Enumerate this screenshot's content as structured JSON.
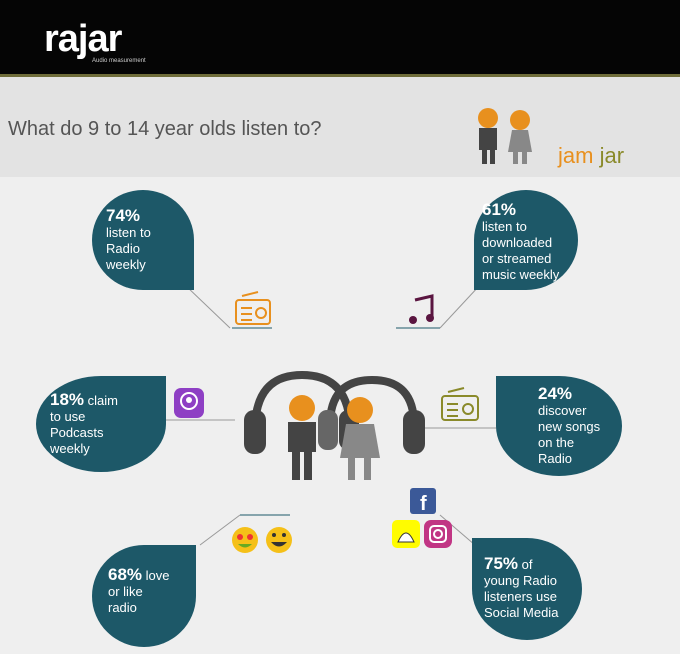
{
  "header": {
    "logo": "rajar",
    "logo_tagline": "Audio measurement"
  },
  "title": "What do 9 to 14 year olds listen to?",
  "brand": {
    "part1": "jam",
    "part2": "jar"
  },
  "bubbles": [
    {
      "stat": "74%",
      "lines": [
        "listen to",
        "Radio",
        "weekly"
      ]
    },
    {
      "stat": "61%",
      "lines": [
        "listen to",
        "downloaded",
        "or streamed",
        "music weekly"
      ]
    },
    {
      "stat": "18%",
      "stat_suffix": "claim",
      "lines": [
        "to use",
        "Podcasts",
        "weekly"
      ]
    },
    {
      "stat": "24%",
      "lines": [
        "discover",
        "new songs",
        "on the",
        "Radio"
      ]
    },
    {
      "stat": "68%",
      "stat_suffix": "love",
      "lines": [
        "or like",
        "radio"
      ]
    },
    {
      "stat": "75%",
      "stat_suffix": "of",
      "lines": [
        "young Radio",
        "listeners use",
        "Social Media"
      ]
    }
  ]
}
